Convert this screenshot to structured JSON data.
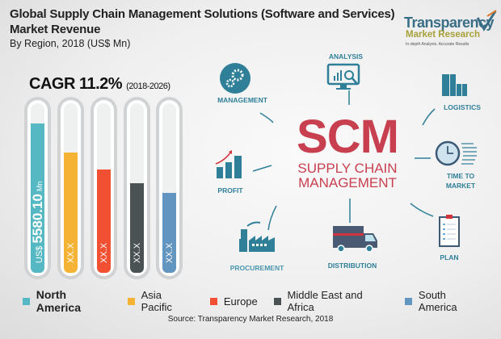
{
  "header": {
    "title": "Global Supply Chain Management Solutions (Software and Services) Market Revenue",
    "subtitle": "By Region, 2018 (US$ Mn)"
  },
  "logo": {
    "line1": "Transparency",
    "line2": "Market Research",
    "tagline": "In-depth Analysis. Accurate Results"
  },
  "cagr": {
    "label": "CAGR 11.2%",
    "period": "(2018-2026)"
  },
  "chart_data": {
    "type": "bar",
    "orientation": "vertical",
    "categories": [
      "North America",
      "Asia Pacific",
      "Europe",
      "Middle East and Africa",
      "South America"
    ],
    "series": [
      {
        "fill_level": [
          0.88,
          0.71,
          0.61,
          0.53,
          0.47
        ],
        "labels": [
          {
            "prefix": "US$",
            "value": "5580.10",
            "unit": "Mn"
          },
          {
            "value": "XX.X"
          },
          {
            "value": "XX.X"
          },
          {
            "value": "XX.X"
          },
          {
            "value": "XX.X"
          }
        ]
      }
    ],
    "colors": [
      "#56b8c2",
      "#f5b335",
      "#f25033",
      "#4a5254",
      "#6295c0"
    ],
    "legend_position": "bottom"
  },
  "diagram": {
    "center": {
      "big": "SCM",
      "line1": "SUPPLY CHAIN",
      "line2": "MANAGEMENT"
    },
    "nodes": {
      "management": "MANAGEMENT",
      "analysis": "ANALYSIS",
      "logistics": "LOGISTICS",
      "profit": "PROFIT",
      "time1": "TIME TO",
      "time2": "MARKET",
      "plan": "PLAN",
      "distribution": "DISTRIBUTION",
      "procurement": "PROCUREMENT"
    },
    "colors": {
      "teal": "#2f7f98",
      "red": "#c8404f"
    }
  },
  "source": "Source: Transparency Market Research, 2018"
}
